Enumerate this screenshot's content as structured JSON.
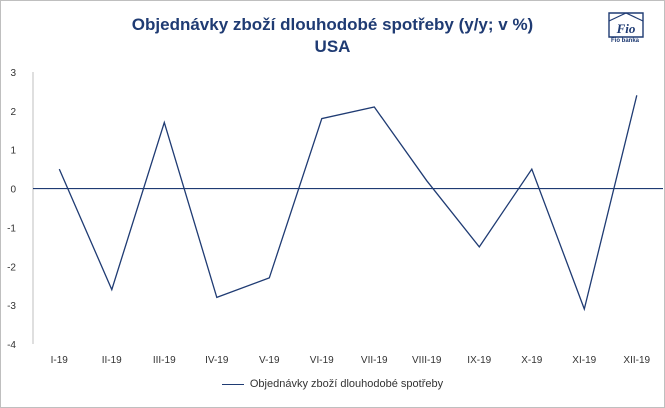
{
  "chart_data": {
    "type": "line",
    "title": "Objednávky zboží dlouhodobé spotřeby (y/y; v %)",
    "subtitle": "USA",
    "categories": [
      "I-19",
      "II-19",
      "III-19",
      "IV-19",
      "V-19",
      "VI-19",
      "VII-19",
      "VIII-19",
      "IX-19",
      "X-19",
      "XI-19",
      "XII-19"
    ],
    "series": [
      {
        "name": "Objednávky zboží dlouhodobé spotřeby",
        "values": [
          0.5,
          -2.6,
          1.7,
          -2.8,
          -2.3,
          1.8,
          2.1,
          0.2,
          -1.5,
          0.5,
          -3.1,
          2.4
        ]
      }
    ],
    "ylim": [
      -4,
      3
    ],
    "yticks": [
      3,
      2,
      1,
      0,
      -1,
      -2,
      -3,
      -4
    ],
    "grid": false,
    "legend": "bottom",
    "color": "#1f3b73"
  },
  "logo": {
    "text": "Fio banka",
    "mark": "Fio"
  }
}
